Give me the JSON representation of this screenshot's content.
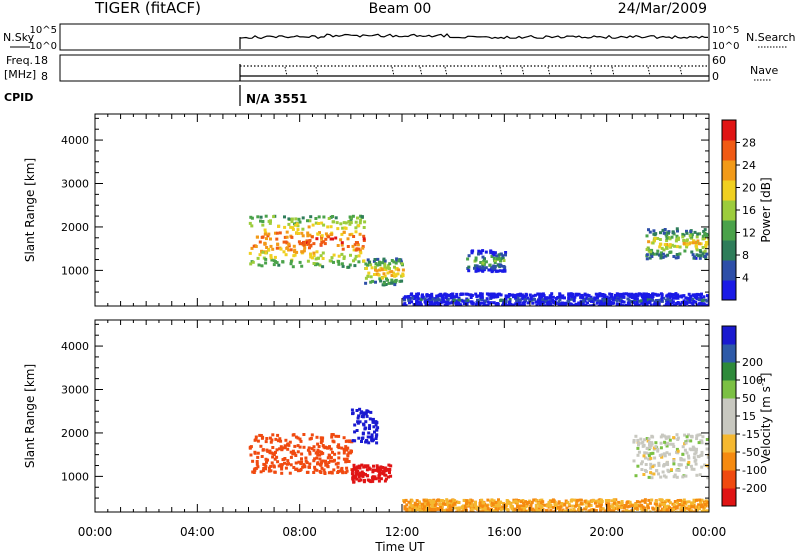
{
  "header": {
    "radar": "TIGER (fitACF)",
    "beam": "Beam 00",
    "date": "24/Mar/2009"
  },
  "top_panels": {
    "noise": {
      "left_label": "N.Sky",
      "left_ticks": [
        "10^5",
        "10^0"
      ],
      "right_label": "N.Search",
      "right_ticks": [
        "10^5",
        "10^0"
      ]
    },
    "freq": {
      "left_label_line1": "Freq.",
      "left_label_line2": "[MHz]",
      "left_ticks": [
        "18",
        "8"
      ],
      "right_label": "Nave",
      "right_ticks": [
        "60",
        "0"
      ]
    },
    "cpid": {
      "label": "CPID",
      "value": "N/A 3551"
    }
  },
  "xaxis": {
    "label": "Time UT",
    "ticks": [
      "00:00",
      "04:00",
      "08:00",
      "12:00",
      "16:00",
      "20:00",
      "00:00"
    ]
  },
  "colors": {
    "power_scale": [
      "#1a1ae6",
      "#2e4fa8",
      "#2e7d5a",
      "#4aa24a",
      "#9ccc3c",
      "#f0d020",
      "#f29a18",
      "#f05a14",
      "#e01414"
    ],
    "velocity_scale": [
      "#e01414",
      "#f04a10",
      "#f58a10",
      "#f5b830",
      "#c8c8c0",
      "#c8c8c0",
      "#7bc043",
      "#2e8a3a",
      "#2e5aa8",
      "#1a1ad0"
    ]
  },
  "chart_data": [
    {
      "type": "heatmap",
      "title": "",
      "xlabel": "",
      "ylabel": "Slant Range [km]",
      "xlim": [
        0,
        24
      ],
      "ylim": [
        180,
        4600
      ],
      "yticks": [
        "1000",
        "2000",
        "3000",
        "4000"
      ],
      "colorbar": {
        "label": "Power [dB]",
        "ticks": [
          "4",
          "8",
          "12",
          "16",
          "20",
          "24",
          "28"
        ],
        "range": [
          0,
          30
        ]
      },
      "features": [
        {
          "t": [
            6.0,
            10.5
          ],
          "r": [
            1100,
            2300
          ],
          "level": 26
        },
        {
          "t": [
            10.5,
            12.0
          ],
          "r": [
            700,
            1300
          ],
          "level": 22
        },
        {
          "t": [
            14.5,
            16.0
          ],
          "r": [
            1000,
            1500
          ],
          "level": 14
        },
        {
          "t": [
            21.5,
            24.0
          ],
          "r": [
            1300,
            2000
          ],
          "level": 20
        },
        {
          "t": [
            12.0,
            24.0
          ],
          "r": [
            200,
            500
          ],
          "level": 6
        }
      ]
    },
    {
      "type": "heatmap",
      "title": "",
      "xlabel": "Time UT",
      "ylabel": "Slant Range [km]",
      "xlim": [
        0,
        24
      ],
      "ylim": [
        180,
        4600
      ],
      "yticks": [
        "1000",
        "2000",
        "3000",
        "4000"
      ],
      "colorbar": {
        "label": "Velocity [m s^-1]",
        "ticks": [
          "-200",
          "-100",
          "-50",
          "-15",
          "15",
          "50",
          "100",
          "200"
        ],
        "range": [
          -250,
          250
        ]
      },
      "features": [
        {
          "t": [
            6.0,
            10.0
          ],
          "r": [
            1100,
            2000
          ],
          "velocity": -180
        },
        {
          "t": [
            10.0,
            11.5
          ],
          "r": [
            900,
            1300
          ],
          "velocity": -220
        },
        {
          "t": [
            10.0,
            11.0
          ],
          "r": [
            1800,
            2600
          ],
          "velocity": 220
        },
        {
          "t": [
            12.0,
            24.0
          ],
          "r": [
            200,
            500
          ],
          "velocity": -50
        },
        {
          "t": [
            21.0,
            24.0
          ],
          "r": [
            1000,
            2000
          ],
          "velocity": 0
        }
      ]
    }
  ]
}
